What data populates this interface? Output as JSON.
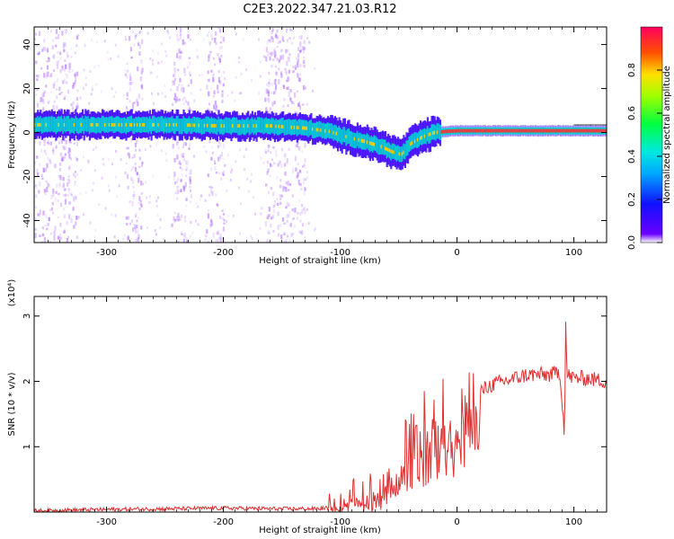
{
  "title": "C2E3.2022.347.21.03.R12",
  "colors": {
    "snr_line": "#e03030",
    "ridge_core": "#ff3030",
    "ridge_mid": "#00d8d0",
    "ridge_outer": "#3a00ff",
    "speckle": "#b070ff",
    "axis": "#000000"
  },
  "chart_data": [
    {
      "type": "heatmap",
      "panel": "spectrogram",
      "xlabel": "Height of straight line (km)",
      "ylabel": "Frequency (Hz)",
      "xlim": [
        -362,
        128
      ],
      "ylim": [
        -50,
        48
      ],
      "xticks": [
        -300,
        -200,
        -100,
        0,
        100
      ],
      "yticks": [
        -40,
        -20,
        0,
        20,
        40
      ],
      "colorbar": {
        "label": "Normalized spectral amplitude",
        "range": [
          0.0,
          1.0
        ],
        "ticks": [
          "0.0",
          "0.2",
          "0.4",
          "0.6",
          "0.8"
        ],
        "colormap": "rainbow (purple to red)"
      },
      "ridge_frequency_hz": {
        "x": [
          -362,
          -300,
          -240,
          -200,
          -160,
          -130,
          -110,
          -95,
          -80,
          -65,
          -55,
          -48,
          -40,
          -30,
          -20,
          -10,
          0,
          30,
          60,
          90,
          128
        ],
        "y": [
          3.5,
          3.5,
          3.5,
          3.0,
          3.0,
          2.0,
          0.5,
          -2.0,
          -4.0,
          -6.5,
          -9.0,
          -10.0,
          -5.0,
          -2.0,
          0.0,
          0.5,
          0.8,
          0.8,
          0.8,
          0.8,
          0.8
        ]
      },
      "strong_core_start_km": -15,
      "background_speckle_bands_km": [
        [
          -362,
          -325
        ],
        [
          -285,
          -270
        ],
        [
          -245,
          -228
        ],
        [
          -215,
          -200
        ],
        [
          -165,
          -130
        ]
      ]
    },
    {
      "type": "line",
      "panel": "snr",
      "xlabel": "Height of straight line (km)",
      "ylabel": "SNR (10 * v/v)",
      "y_multiplier": "(x10⁴)",
      "xlim": [
        -362,
        128
      ],
      "ylim": [
        0,
        3.3
      ],
      "xticks": [
        -300,
        -200,
        -100,
        0,
        100
      ],
      "yticks": [
        1,
        2,
        3
      ],
      "series": [
        {
          "x": [
            -362,
            -300,
            -250,
            -200,
            -150,
            -120,
            -100,
            -90,
            -80,
            -70,
            -60,
            -50,
            -40,
            -30,
            -20,
            -10,
            0,
            10,
            20,
            30,
            40,
            50,
            60,
            70,
            80,
            88,
            92,
            93,
            94,
            100,
            110,
            128
          ],
          "y": [
            0.02,
            0.04,
            0.05,
            0.06,
            0.05,
            0.05,
            0.08,
            0.2,
            0.25,
            0.3,
            0.4,
            0.7,
            1.0,
            1.2,
            1.3,
            1.4,
            1.5,
            1.6,
            1.85,
            1.95,
            2.0,
            2.05,
            2.1,
            2.1,
            2.1,
            2.15,
            1.2,
            2.9,
            2.1,
            2.05,
            2.05,
            2.0
          ]
        }
      ]
    }
  ]
}
